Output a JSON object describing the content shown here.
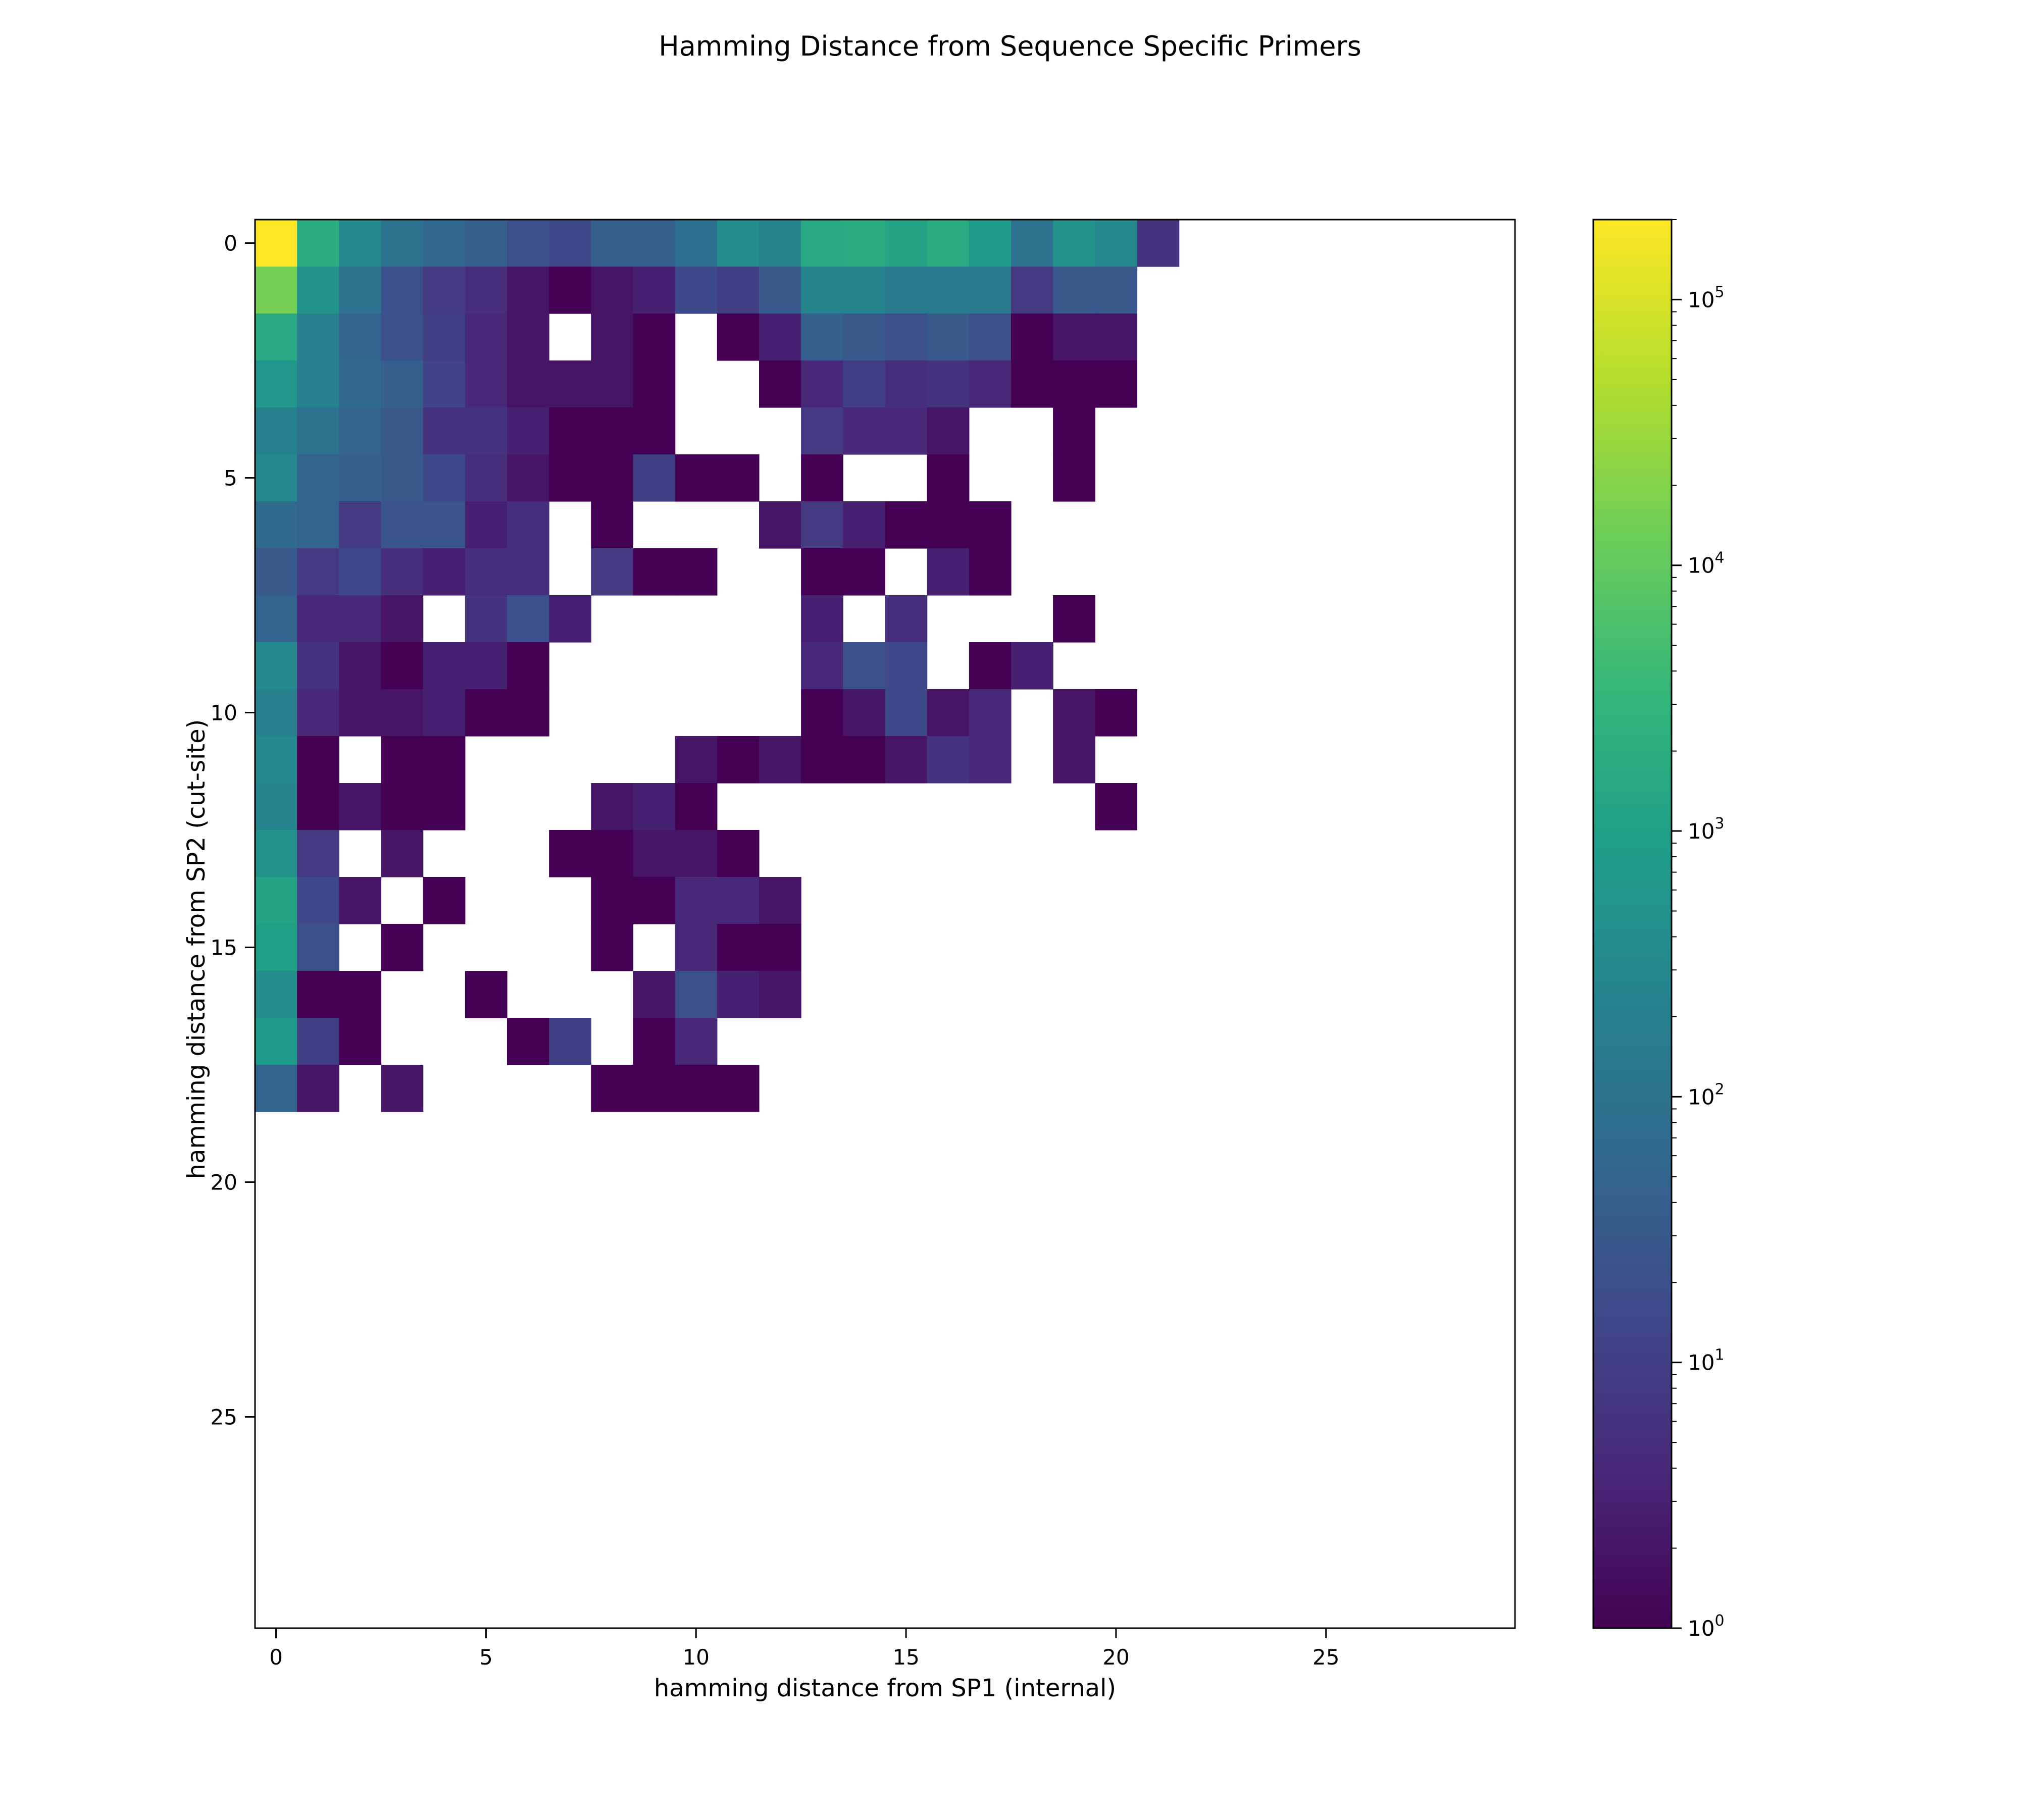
{
  "chart_data": {
    "type": "heatmap",
    "title": "Hamming Distance from Sequence Specific Primers",
    "xlabel": "hamming distance from SP1 (internal)",
    "ylabel": "hamming distance from SP2 (cut-site)",
    "x_range": [
      -0.5,
      29.5
    ],
    "y_range": [
      29.5,
      -0.5
    ],
    "x_ticks": [
      0,
      5,
      10,
      15,
      20,
      25
    ],
    "y_ticks": [
      0,
      5,
      10,
      15,
      20,
      25
    ],
    "colorbar": {
      "scale": "log",
      "min": 1,
      "max": 200000,
      "tick_values": [
        1,
        10,
        100,
        1000,
        10000,
        100000
      ],
      "tick_labels": [
        "10^0",
        "10^1",
        "10^2",
        "10^3",
        "10^4",
        "10^5"
      ],
      "colormap": "viridis"
    },
    "note_empty": "cells not listed are empty (white)",
    "rows": [
      [
        200000,
        2000,
        300,
        100,
        60,
        40,
        20,
        15,
        40,
        40,
        80,
        400,
        250,
        1500,
        1800,
        1200,
        1800,
        800,
        100,
        500,
        300,
        6
      ],
      [
        15000,
        500,
        100,
        20,
        8,
        5,
        2,
        1,
        2,
        3,
        15,
        10,
        30,
        250,
        250,
        150,
        150,
        150,
        8,
        30,
        30
      ],
      [
        1500,
        200,
        50,
        20,
        10,
        4,
        2,
        null,
        2,
        1,
        null,
        1,
        3,
        40,
        30,
        20,
        30,
        20,
        1,
        2,
        2
      ],
      [
        600,
        200,
        60,
        40,
        12,
        4,
        2,
        2,
        2,
        1,
        null,
        null,
        1,
        4,
        10,
        5,
        6,
        4,
        1,
        1,
        1
      ],
      [
        200,
        100,
        50,
        30,
        6,
        6,
        3,
        1,
        1,
        1,
        null,
        null,
        null,
        8,
        4,
        4,
        2,
        null,
        null,
        1
      ],
      [
        300,
        50,
        40,
        30,
        15,
        5,
        2,
        1,
        1,
        10,
        1,
        1,
        null,
        1,
        null,
        null,
        1,
        null,
        null,
        1
      ],
      [
        70,
        50,
        8,
        25,
        25,
        3,
        5,
        null,
        1,
        null,
        null,
        null,
        2,
        8,
        3,
        1,
        1,
        1
      ],
      [
        30,
        8,
        15,
        5,
        3,
        5,
        5,
        null,
        8,
        1,
        1,
        null,
        null,
        1,
        1,
        null,
        3,
        1
      ],
      [
        50,
        4,
        4,
        2,
        null,
        6,
        20,
        3,
        null,
        null,
        null,
        null,
        null,
        3,
        null,
        5,
        null,
        null,
        null,
        1
      ],
      [
        300,
        6,
        2,
        1,
        3,
        3,
        1,
        null,
        null,
        null,
        null,
        null,
        null,
        4,
        20,
        15,
        null,
        1,
        3
      ],
      [
        200,
        4,
        2,
        2,
        3,
        1,
        1,
        null,
        null,
        null,
        null,
        null,
        null,
        1,
        2,
        15,
        2,
        4,
        null,
        2,
        1
      ],
      [
        300,
        1,
        null,
        1,
        1,
        null,
        null,
        null,
        null,
        null,
        2,
        1,
        2,
        1,
        1,
        2,
        6,
        4,
        null,
        2
      ],
      [
        250,
        1,
        2,
        1,
        1,
        null,
        null,
        null,
        2,
        3,
        1,
        null,
        null,
        null,
        null,
        null,
        null,
        null,
        null,
        null,
        1
      ],
      [
        500,
        8,
        null,
        2,
        null,
        null,
        null,
        1,
        1,
        2,
        2,
        1
      ],
      [
        1200,
        15,
        2,
        null,
        1,
        null,
        null,
        null,
        1,
        1,
        4,
        4,
        2
      ],
      [
        1000,
        20,
        null,
        1,
        null,
        null,
        null,
        null,
        1,
        null,
        4,
        1,
        1
      ],
      [
        400,
        1,
        1,
        null,
        null,
        1,
        null,
        null,
        null,
        2,
        20,
        3,
        2
      ],
      [
        800,
        10,
        1,
        null,
        null,
        null,
        1,
        10,
        null,
        1,
        4
      ],
      [
        50,
        2,
        null,
        2,
        null,
        null,
        null,
        null,
        1,
        1,
        1,
        1
      ]
    ]
  }
}
